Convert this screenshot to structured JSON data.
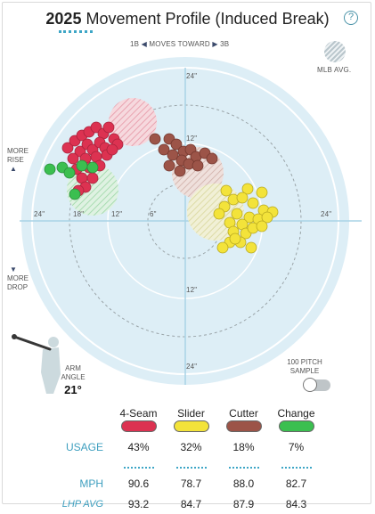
{
  "header": {
    "year": "2025",
    "title": "Movement Profile (Induced Break)",
    "help_icon": "question-icon",
    "help_glyph": "?"
  },
  "direction": {
    "left": "1B",
    "middle": "MOVES TOWARD",
    "right": "3B"
  },
  "mlb_avg_label": "MLB AVG.",
  "side_labels": {
    "rise_line1": "MORE",
    "rise_line2": "RISE",
    "drop_line1": "MORE",
    "drop_line2": "DROP",
    "up_arrow": "▲",
    "down_arrow": "▼"
  },
  "ring_labels": {
    "top_outer": "24\"",
    "top_inner": "12\"",
    "bottom_inner": "12\"",
    "bottom_outer": "24\"",
    "left_outer": "24\"",
    "left_mid": "18\"",
    "left_inner": "12\"",
    "left_6": "6\"",
    "right_outer": "24\""
  },
  "arm_angle": {
    "label_line1": "ARM",
    "label_line2": "ANGLE",
    "value": "21°"
  },
  "sample": {
    "line1": "100 PITCH",
    "line2": "SAMPLE",
    "toggle_on": false
  },
  "legend": {
    "row_labels": {
      "usage": "USAGE",
      "mph": "MPH",
      "lhp_avg": "LHP AVG"
    },
    "pitches": [
      {
        "name": "4-Seam",
        "color": "#dc3251",
        "usage": "43%",
        "mph": "90.6",
        "lhp_avg": "93.2"
      },
      {
        "name": "Slider",
        "color": "#f3e33a",
        "usage": "32%",
        "mph": "78.7",
        "lhp_avg": "84.7"
      },
      {
        "name": "Cutter",
        "color": "#9c5448",
        "usage": "18%",
        "mph": "88.0",
        "lhp_avg": "87.9"
      },
      {
        "name": "Change",
        "color": "#3bbf50",
        "usage": "7%",
        "mph": "82.7",
        "lhp_avg": "84.3"
      }
    ]
  }
}
